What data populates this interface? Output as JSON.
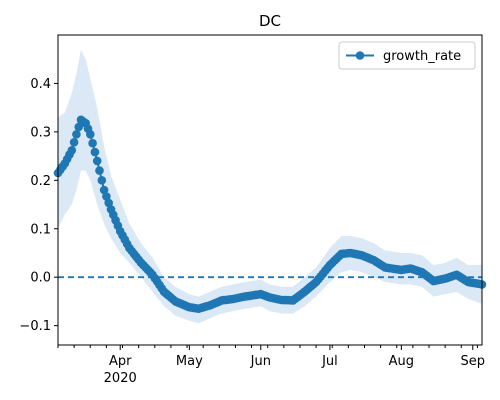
{
  "chart_data": {
    "type": "line",
    "title": "DC",
    "xlabel": "",
    "ylabel": "",
    "x_range": [
      "2020-03-05",
      "2020-09-05"
    ],
    "ylim": [
      -0.14,
      0.5
    ],
    "grid": false,
    "legend_position": "top-right",
    "x_tick_labels": [
      {
        "date": "2020-04-01",
        "label": "Apr",
        "sublabel": "2020"
      },
      {
        "date": "2020-05-01",
        "label": "May",
        "sublabel": ""
      },
      {
        "date": "2020-06-01",
        "label": "Jun",
        "sublabel": ""
      },
      {
        "date": "2020-07-01",
        "label": "Jul",
        "sublabel": ""
      },
      {
        "date": "2020-08-01",
        "label": "Aug",
        "sublabel": ""
      },
      {
        "date": "2020-09-01",
        "label": "Sep",
        "sublabel": ""
      }
    ],
    "y_ticks": [
      -0.1,
      0.0,
      0.1,
      0.2,
      0.3,
      0.4
    ],
    "y_tick_labels": [
      "−0.1",
      "0.0",
      "0.1",
      "0.2",
      "0.3",
      "0.4"
    ],
    "reference_line": {
      "y": 0.0,
      "style": "dashed"
    },
    "series": [
      {
        "name": "growth_rate",
        "color": "#1f77b4",
        "band_color": "#dbe8f5",
        "points": [
          [
            "2020-03-05",
            0.215,
            0.1,
            0.33
          ],
          [
            "2020-03-08",
            0.235,
            0.13,
            0.34
          ],
          [
            "2020-03-11",
            0.262,
            0.15,
            0.38
          ],
          [
            "2020-03-13",
            0.295,
            0.18,
            0.42
          ],
          [
            "2020-03-15",
            0.325,
            0.22,
            0.47
          ],
          [
            "2020-03-17",
            0.318,
            0.22,
            0.45
          ],
          [
            "2020-03-19",
            0.295,
            0.2,
            0.41
          ],
          [
            "2020-03-22",
            0.24,
            0.15,
            0.35
          ],
          [
            "2020-03-25",
            0.18,
            0.11,
            0.27
          ],
          [
            "2020-03-28",
            0.14,
            0.08,
            0.21
          ],
          [
            "2020-04-01",
            0.095,
            0.05,
            0.16
          ],
          [
            "2020-04-05",
            0.06,
            0.03,
            0.11
          ],
          [
            "2020-04-10",
            0.03,
            0.0,
            0.07
          ],
          [
            "2020-04-15",
            0.005,
            -0.03,
            0.04
          ],
          [
            "2020-04-20",
            -0.03,
            -0.06,
            0.0
          ],
          [
            "2020-04-25",
            -0.05,
            -0.08,
            -0.02
          ],
          [
            "2020-05-01",
            -0.062,
            -0.09,
            -0.035
          ],
          [
            "2020-05-05",
            -0.065,
            -0.095,
            -0.04
          ],
          [
            "2020-05-10",
            -0.058,
            -0.085,
            -0.03
          ],
          [
            "2020-05-15",
            -0.048,
            -0.075,
            -0.02
          ],
          [
            "2020-05-20",
            -0.045,
            -0.07,
            -0.015
          ],
          [
            "2020-05-25",
            -0.04,
            -0.065,
            -0.01
          ],
          [
            "2020-06-01",
            -0.035,
            -0.06,
            -0.005
          ],
          [
            "2020-06-05",
            -0.042,
            -0.07,
            -0.015
          ],
          [
            "2020-06-10",
            -0.047,
            -0.075,
            -0.02
          ],
          [
            "2020-06-15",
            -0.048,
            -0.075,
            -0.02
          ],
          [
            "2020-06-20",
            -0.03,
            -0.06,
            0.0
          ],
          [
            "2020-06-25",
            -0.01,
            -0.04,
            0.02
          ],
          [
            "2020-07-01",
            0.025,
            -0.01,
            0.06
          ],
          [
            "2020-07-06",
            0.048,
            0.01,
            0.085
          ],
          [
            "2020-07-10",
            0.05,
            0.015,
            0.085
          ],
          [
            "2020-07-15",
            0.045,
            0.01,
            0.08
          ],
          [
            "2020-07-20",
            0.035,
            0.0,
            0.07
          ],
          [
            "2020-07-25",
            0.02,
            -0.01,
            0.055
          ],
          [
            "2020-08-01",
            0.015,
            -0.015,
            0.05
          ],
          [
            "2020-08-05",
            0.018,
            -0.015,
            0.05
          ],
          [
            "2020-08-10",
            0.01,
            -0.02,
            0.045
          ],
          [
            "2020-08-15",
            -0.008,
            -0.04,
            0.025
          ],
          [
            "2020-08-20",
            -0.003,
            -0.035,
            0.03
          ],
          [
            "2020-08-25",
            0.005,
            -0.03,
            0.04
          ],
          [
            "2020-08-30",
            -0.01,
            -0.045,
            0.025
          ],
          [
            "2020-09-05",
            -0.015,
            -0.055,
            0.025
          ]
        ]
      }
    ]
  }
}
